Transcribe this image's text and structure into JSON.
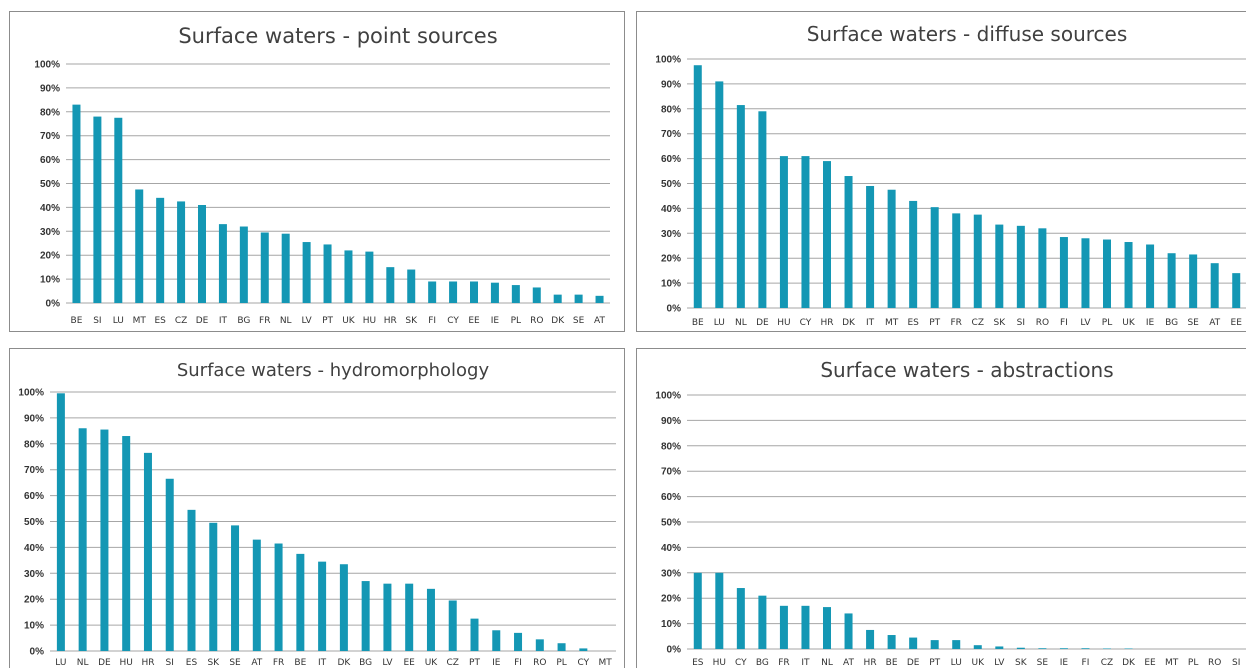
{
  "colors": {
    "bar": "#1497b4",
    "grid": "#a6a6a6",
    "text": "#404040"
  },
  "chart_data": [
    {
      "type": "bar",
      "title": "Surface waters - point sources",
      "ylim": [
        0,
        100
      ],
      "yticks": [
        "0%",
        "10%",
        "20%",
        "30%",
        "40%",
        "50%",
        "60%",
        "70%",
        "80%",
        "90%",
        "100%"
      ],
      "grid": true,
      "categories": [
        "BE",
        "SI",
        "LU",
        "MT",
        "ES",
        "CZ",
        "DE",
        "IT",
        "BG",
        "FR",
        "NL",
        "LV",
        "PT",
        "UK",
        "HU",
        "HR",
        "SK",
        "FI",
        "CY",
        "EE",
        "IE",
        "PL",
        "RO",
        "DK",
        "SE",
        "AT"
      ],
      "values": [
        83,
        78,
        77.5,
        47.5,
        44,
        42.5,
        41,
        33,
        32,
        29.5,
        29,
        25.5,
        24.5,
        22,
        21.5,
        15,
        14,
        9,
        9,
        9,
        8.5,
        7.5,
        6.5,
        3.5,
        3.5,
        3
      ]
    },
    {
      "type": "bar",
      "title": "Surface waters - diffuse sources",
      "ylim": [
        0,
        100
      ],
      "yticks": [
        "0%",
        "10%",
        "20%",
        "30%",
        "40%",
        "50%",
        "60%",
        "70%",
        "80%",
        "90%",
        "100%"
      ],
      "grid": true,
      "categories": [
        "BE",
        "LU",
        "NL",
        "DE",
        "HU",
        "CY",
        "HR",
        "DK",
        "IT",
        "MT",
        "ES",
        "PT",
        "FR",
        "CZ",
        "SK",
        "SI",
        "RO",
        "FI",
        "LV",
        "PL",
        "UK",
        "IE",
        "BG",
        "SE",
        "AT",
        "EE"
      ],
      "values": [
        97.5,
        91,
        81.5,
        79,
        61,
        61,
        59,
        53,
        49,
        47.5,
        43,
        40.5,
        38,
        37.5,
        33.5,
        33,
        32,
        28.5,
        28,
        27.5,
        26.5,
        25.5,
        22,
        21.5,
        18,
        14
      ]
    },
    {
      "type": "bar",
      "title": "Surface waters - hydromorphology",
      "ylim": [
        0,
        100
      ],
      "yticks": [
        "0%",
        "10%",
        "20%",
        "30%",
        "40%",
        "50%",
        "60%",
        "70%",
        "80%",
        "90%",
        "100%"
      ],
      "grid": true,
      "categories": [
        "LU",
        "NL",
        "DE",
        "HU",
        "HR",
        "SI",
        "ES",
        "SK",
        "SE",
        "AT",
        "FR",
        "BE",
        "IT",
        "DK",
        "BG",
        "LV",
        "EE",
        "UK",
        "CZ",
        "PT",
        "IE",
        "FI",
        "RO",
        "PL",
        "CY",
        "MT"
      ],
      "values": [
        99.5,
        86,
        85.5,
        83,
        76.5,
        66.5,
        54.5,
        49.5,
        48.5,
        43,
        41.5,
        37.5,
        34.5,
        33.5,
        27,
        26,
        26,
        24,
        19.5,
        12.5,
        8,
        7,
        4.5,
        3,
        1,
        0
      ]
    },
    {
      "type": "bar",
      "title": "Surface waters - abstractions",
      "ylim": [
        0,
        100
      ],
      "yticks": [
        "0%",
        "10%",
        "20%",
        "30%",
        "40%",
        "50%",
        "60%",
        "70%",
        "80%",
        "90%",
        "100%"
      ],
      "grid": true,
      "categories": [
        "ES",
        "HU",
        "CY",
        "BG",
        "FR",
        "IT",
        "NL",
        "AT",
        "HR",
        "BE",
        "DE",
        "PT",
        "LU",
        "UK",
        "LV",
        "SK",
        "SE",
        "IE",
        "FI",
        "CZ",
        "DK",
        "EE",
        "MT",
        "PL",
        "RO",
        "SI"
      ],
      "values": [
        30,
        30,
        24,
        21,
        17,
        17,
        16.5,
        14,
        7.5,
        5.5,
        4.5,
        3.5,
        3.5,
        1.5,
        1,
        0.5,
        0.3,
        0.3,
        0.3,
        0.2,
        0.2,
        0,
        0,
        0,
        0,
        0
      ]
    }
  ]
}
